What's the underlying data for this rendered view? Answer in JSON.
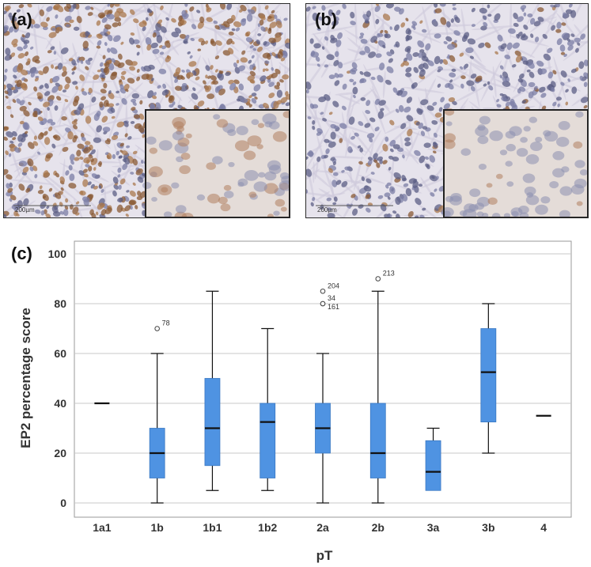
{
  "panels": {
    "a": {
      "label": "(a)",
      "scale_text": "200µm",
      "tint": "#c9a27e"
    },
    "b": {
      "label": "(b)",
      "scale_text": "200µm",
      "tint": "#d7c7b6"
    }
  },
  "chart_label": "(c)",
  "colors": {
    "box_fill": "#4f93e2",
    "grid": "#c8c8c8",
    "frame": "#9a9a9a"
  },
  "chart_data": {
    "type": "box",
    "xlabel": "pT",
    "ylabel": "EP2 percentage score",
    "ylim": [
      -5,
      102
    ],
    "yticks": [
      0,
      20,
      40,
      60,
      80,
      100
    ],
    "grid": true,
    "categories": [
      "1a1",
      "1b",
      "1b1",
      "1b2",
      "2a",
      "2b",
      "3a",
      "3b",
      "4"
    ],
    "boxes": [
      {
        "category": "1a1",
        "min": 40,
        "q1": 40,
        "median": 40,
        "q3": 40,
        "max": 40
      },
      {
        "category": "1b",
        "min": 0,
        "q1": 10,
        "median": 20,
        "q3": 30,
        "max": 60
      },
      {
        "category": "1b1",
        "min": 5,
        "q1": 15,
        "median": 30,
        "q3": 50,
        "max": 85
      },
      {
        "category": "1b2",
        "min": 5,
        "q1": 10,
        "median": 32.5,
        "q3": 40,
        "max": 70
      },
      {
        "category": "2a",
        "min": 0,
        "q1": 20,
        "median": 30,
        "q3": 40,
        "max": 60
      },
      {
        "category": "2b",
        "min": 0,
        "q1": 10,
        "median": 20,
        "q3": 40,
        "max": 85
      },
      {
        "category": "3a",
        "min": 5,
        "q1": 5,
        "median": 12.5,
        "q3": 25,
        "max": 30
      },
      {
        "category": "3b",
        "min": 20,
        "q1": 32.5,
        "median": 52.5,
        "q3": 70,
        "max": 80
      },
      {
        "category": "4",
        "min": 35,
        "q1": 35,
        "median": 35,
        "q3": 35,
        "max": 35
      }
    ],
    "outliers": [
      {
        "category": "1b",
        "value": 70,
        "label": "78"
      },
      {
        "category": "2a",
        "value": 85,
        "label": "204"
      },
      {
        "category": "2a",
        "value": 80,
        "label": "34"
      },
      {
        "category": "2a",
        "value": 80,
        "label": "161"
      },
      {
        "category": "2b",
        "value": 90,
        "label": "213"
      }
    ]
  }
}
